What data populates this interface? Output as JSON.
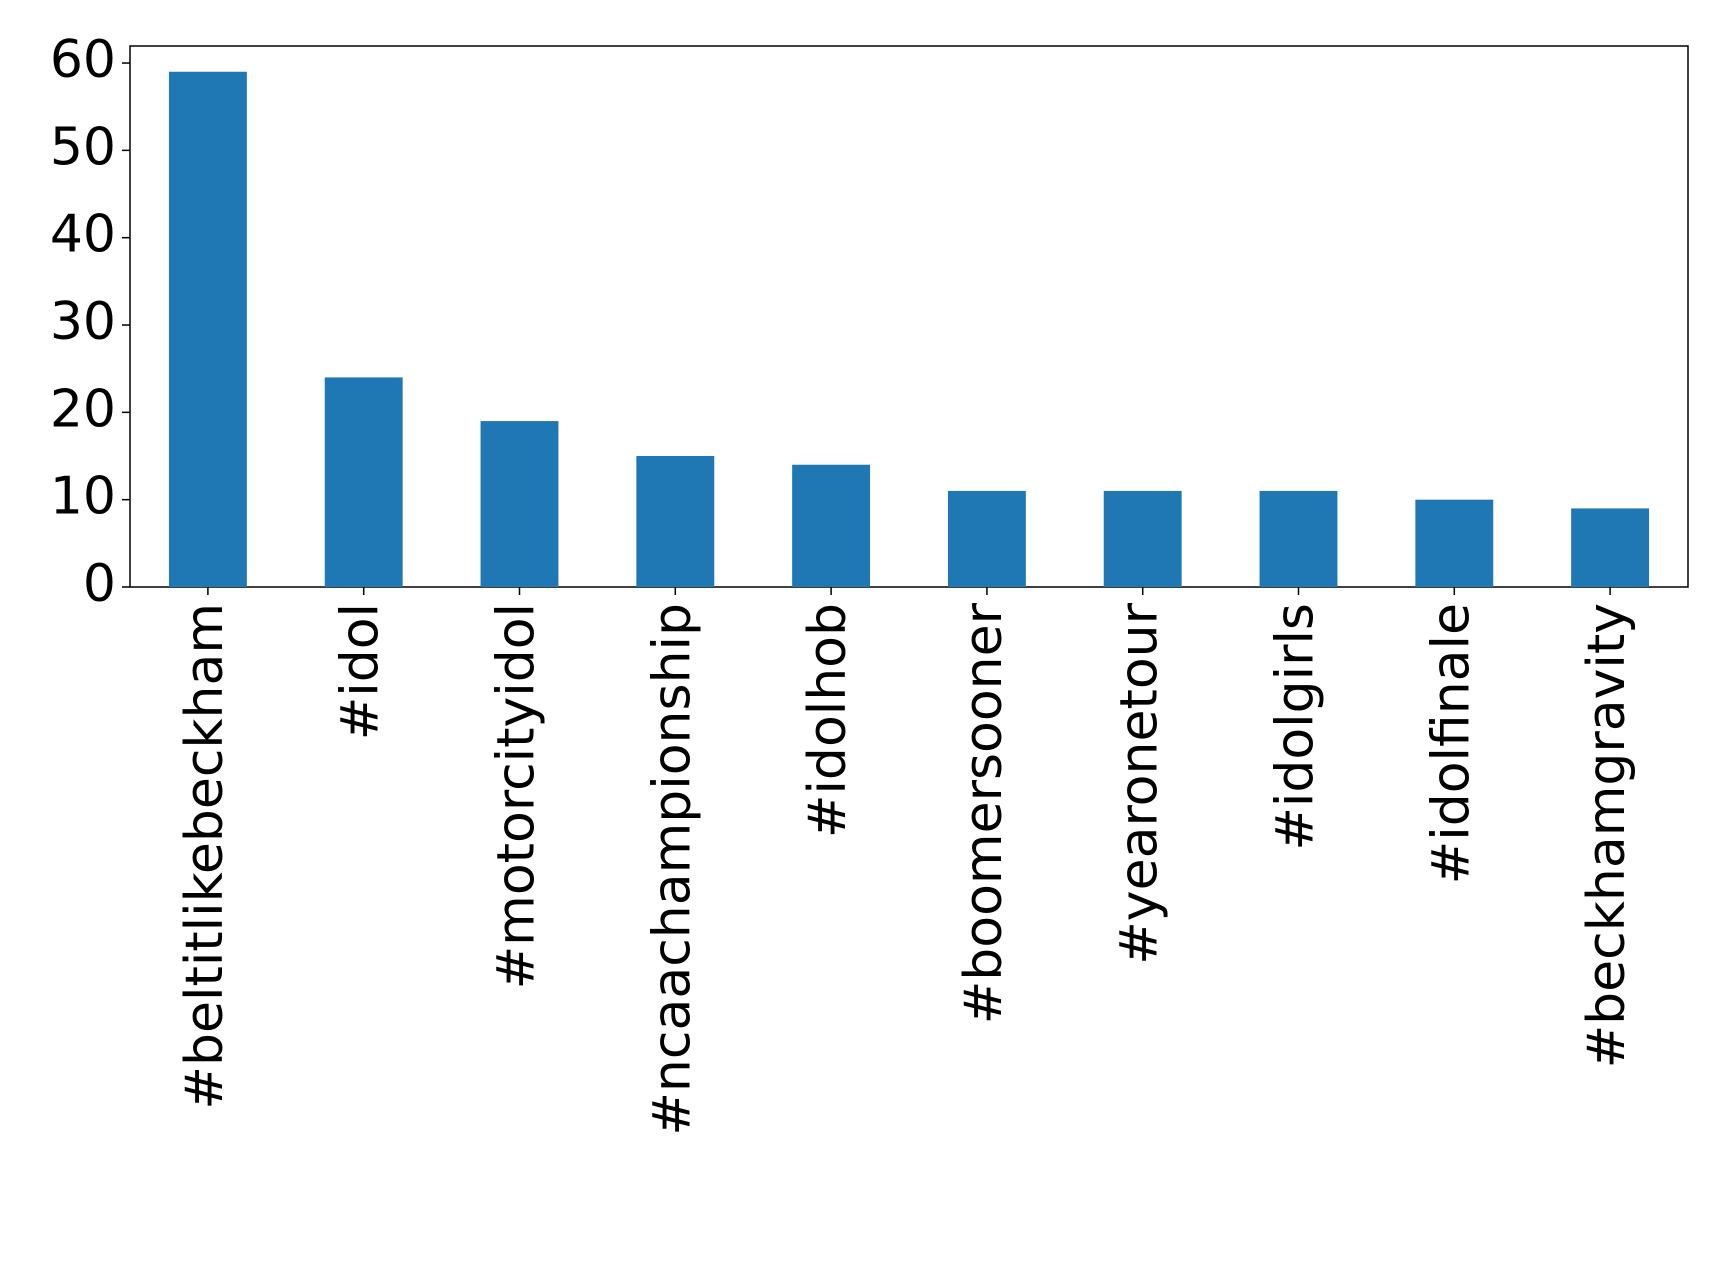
{
  "chart_data": {
    "type": "bar",
    "categories": [
      "#beltitlikebeckham",
      "#idol",
      "#motorcityidol",
      "#ncaachampionship",
      "#idolhob",
      "#boomersooner",
      "#yearonetour",
      "#idolgirls",
      "#idolfinale",
      "#beckhamgravity"
    ],
    "values": [
      59,
      24,
      19,
      15,
      14,
      11,
      11,
      11,
      10,
      9
    ],
    "color": "#1f77b4",
    "ylim": [
      0,
      61.95
    ],
    "yticks": [
      0,
      10,
      20,
      30,
      40,
      50,
      60
    ],
    "grid": false
  }
}
